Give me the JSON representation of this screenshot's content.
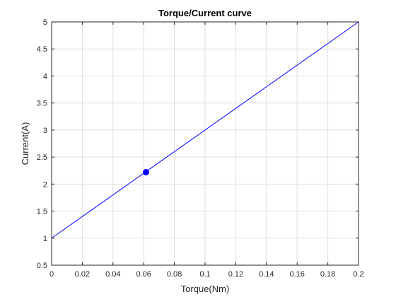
{
  "chart_data": {
    "type": "line",
    "title": "Torque/Current curve",
    "xlabel": "Torque(Nm)",
    "ylabel": "Current(A)",
    "xlim": [
      0,
      0.2
    ],
    "ylim": [
      0.5,
      5
    ],
    "x_ticks": [
      0,
      0.02,
      0.04,
      0.06,
      0.08,
      0.1,
      0.12,
      0.14,
      0.16,
      0.18,
      0.2
    ],
    "y_ticks": [
      0.5,
      1,
      1.5,
      2,
      2.5,
      3,
      3.5,
      4,
      4.5,
      5
    ],
    "x_tick_labels": [
      "0",
      "0.02",
      "0.04",
      "0.06",
      "0.08",
      "0.1",
      "0.12",
      "0.14",
      "0.16",
      "0.18",
      "0.2"
    ],
    "y_tick_labels": [
      "0.5",
      "1",
      "1.5",
      "2",
      "2.5",
      "3",
      "3.5",
      "4",
      "4.5",
      "5"
    ],
    "grid": true,
    "series": [
      {
        "x": [
          0,
          0.2
        ],
        "y": [
          1,
          5
        ],
        "color": "#0000ff"
      }
    ],
    "markers": [
      {
        "x": 0.0615,
        "y": 2.22,
        "color": "#0000ff"
      }
    ]
  }
}
